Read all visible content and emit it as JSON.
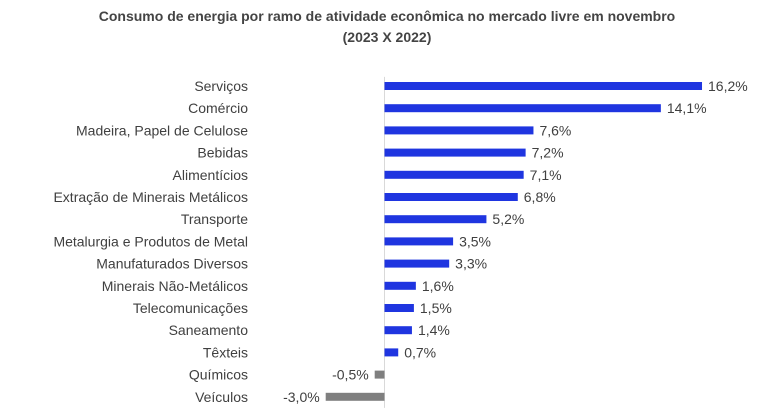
{
  "chart_data": {
    "type": "bar",
    "orientation": "horizontal",
    "title_line1": "Consumo de energia por ramo de atividade econômica no mercado livre em novembro",
    "title_line2": "(2023 X 2022)",
    "xlabel": "",
    "ylabel": "",
    "grid": false,
    "legend": "none",
    "xlim": [
      -3.0,
      16.2
    ],
    "categories": [
      "Serviços",
      "Comércio",
      "Madeira, Papel de Celulose",
      "Bebidas",
      "Alimentícios",
      "Extração de Minerais Metálicos",
      "Transporte",
      "Metalurgia e Produtos de Metal",
      "Manufaturados Diversos",
      "Minerais Não-Metálicos",
      "Telecomunicações",
      "Saneamento",
      "Têxteis",
      "Químicos",
      "Veículos"
    ],
    "values": [
      16.2,
      14.1,
      7.6,
      7.2,
      7.1,
      6.8,
      5.2,
      3.5,
      3.3,
      1.6,
      1.5,
      1.4,
      0.7,
      -0.5,
      -3.0
    ],
    "data_labels": [
      "16,2%",
      "14,1%",
      "7,6%",
      "7,2%",
      "7,1%",
      "6,8%",
      "5,2%",
      "3,5%",
      "3,3%",
      "1,6%",
      "1,5%",
      "1,4%",
      "0,7%",
      "-0,5%",
      "-3,0%"
    ],
    "colors": {
      "positive": "#1F35E0",
      "negative": "#7F7F7F",
      "axis": "#D9D9D9"
    }
  }
}
